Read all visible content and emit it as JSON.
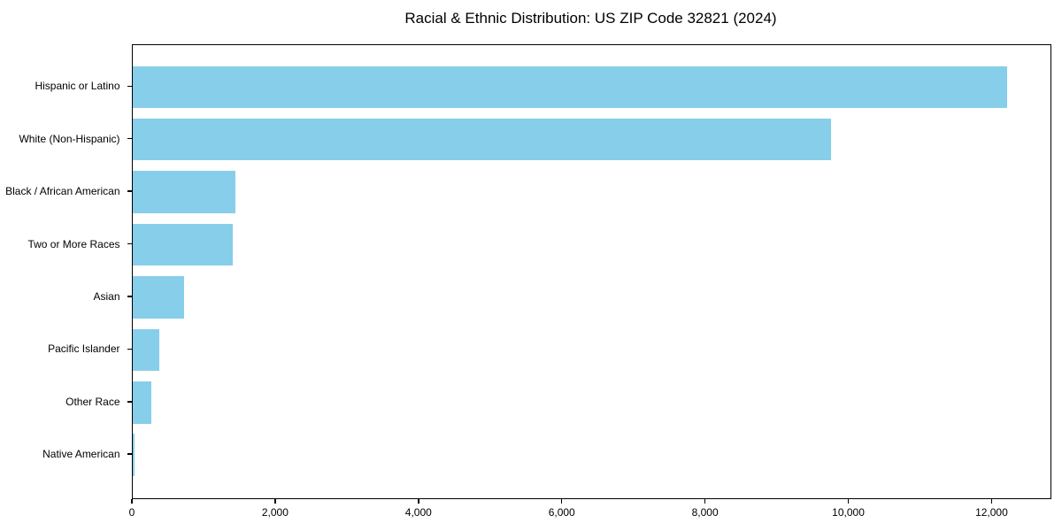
{
  "chart_data": {
    "type": "bar",
    "orientation": "horizontal",
    "title": "Racial & Ethnic Distribution: US ZIP Code 32821 (2024)",
    "categories": [
      "Hispanic or Latino",
      "White (Non-Hispanic)",
      "Black / African American",
      "Two or More Races",
      "Asian",
      "Pacific Islander",
      "Other Race",
      "Native American"
    ],
    "values": [
      12200,
      9750,
      1430,
      1390,
      720,
      375,
      260,
      20
    ],
    "xlabel": "",
    "ylabel": "",
    "xlim": [
      0,
      12810
    ],
    "xticks": [
      0,
      2000,
      4000,
      6000,
      8000,
      10000,
      12000
    ],
    "xtick_labels": [
      "0",
      "2,000",
      "4,000",
      "6,000",
      "8,000",
      "10,000",
      "12,000"
    ],
    "bar_color": "#87CEEB",
    "axis_color": "#000000",
    "text_color": "#000000",
    "background_color": "#FFFFFF",
    "grid": false,
    "legend": false,
    "categories_order": "largest-on-top"
  }
}
